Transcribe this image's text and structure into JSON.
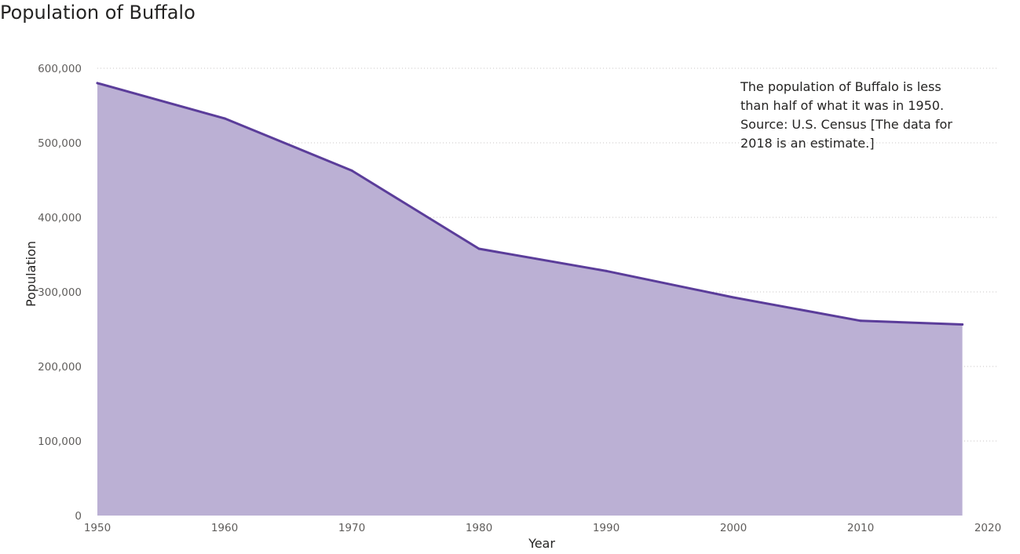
{
  "chart_data": {
    "type": "area",
    "title": "Population of Buffalo",
    "xlabel": "Year",
    "ylabel": "Population",
    "xlim": [
      1950,
      2020
    ],
    "ylim": [
      0,
      600000
    ],
    "x_ticks": [
      1950,
      1960,
      1970,
      1980,
      1990,
      2000,
      2010,
      2020
    ],
    "y_ticks": [
      0,
      100000,
      200000,
      300000,
      400000,
      500000,
      600000
    ],
    "x_tick_labels": [
      "1950",
      "1960",
      "1970",
      "1980",
      "1990",
      "2000",
      "2010",
      "2020"
    ],
    "y_tick_labels": [
      "0",
      "100,000",
      "200,000",
      "300,000",
      "400,000",
      "500,000",
      "600,000"
    ],
    "grid": "horizontal dotted",
    "series": [
      {
        "x": [
          1950,
          1960,
          1970,
          1980,
          1990,
          2000,
          2010,
          2018
        ],
        "values": [
          580132,
          532759,
          462768,
          357870,
          328123,
          292648,
          261310,
          256304
        ]
      }
    ],
    "annotation": [
      "The population of Buffalo is less",
      "than half of what it was in 1950.",
      "Source: U.S. Census [The data for",
      "2018 is an estimate.]"
    ],
    "colors": {
      "line": "#5b3d9a",
      "fill": "#bbb0d4",
      "gridline": "#c8c6c4",
      "tick_text": "#605e5c",
      "title_text": "#252423"
    }
  }
}
